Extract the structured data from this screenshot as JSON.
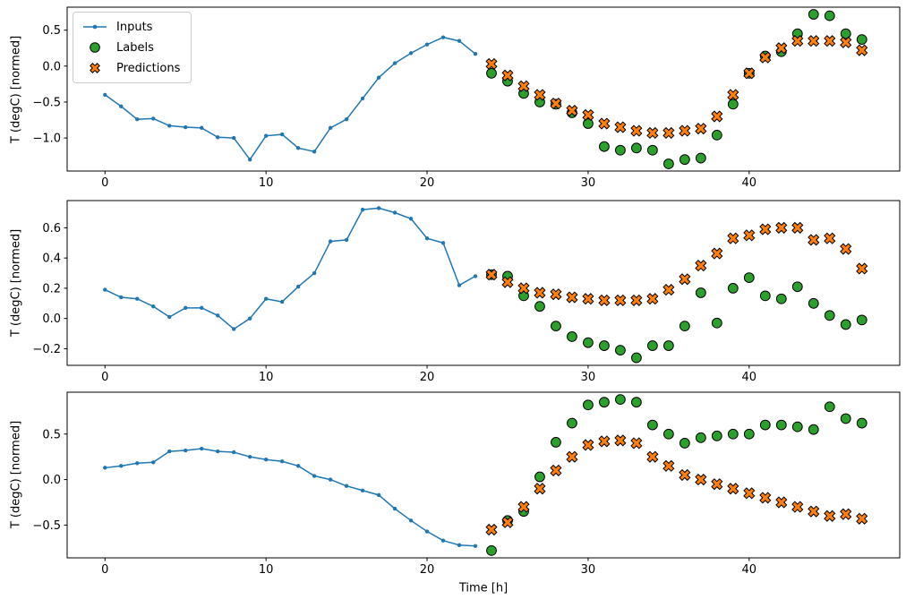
{
  "figure": {
    "xlabel": "Time [h]",
    "legend": {
      "items": [
        {
          "label": "Inputs",
          "marker": "line-dot",
          "color": "#1f77b4"
        },
        {
          "label": "Labels",
          "marker": "circle",
          "color": "#2ca02c"
        },
        {
          "label": "Predictions",
          "marker": "X",
          "color": "#ff7f0e"
        }
      ]
    },
    "colors": {
      "inputs": "#1f77b4",
      "labels": "#2ca02c",
      "predictions": "#ff7f0e",
      "marker_edge": "#000000",
      "spine": "#000000"
    }
  },
  "chart_data": [
    {
      "type": "line+scatter",
      "ylabel": "T (degC) [normed]",
      "xlim": [
        -2.35,
        49.35
      ],
      "ylim": [
        -1.46,
        0.82
      ],
      "xticks": [
        0,
        10,
        20,
        30,
        40
      ],
      "yticks": [
        0.5,
        0.0,
        -0.5,
        -1.0
      ],
      "grid": false,
      "series": [
        {
          "name": "Inputs",
          "type": "line",
          "marker": "dot",
          "color": "#1f77b4",
          "x": [
            0,
            1,
            2,
            3,
            4,
            5,
            6,
            7,
            8,
            9,
            10,
            11,
            12,
            13,
            14,
            15,
            16,
            17,
            18,
            19,
            20,
            21,
            22,
            23
          ],
          "y": [
            -0.4,
            -0.56,
            -0.74,
            -0.73,
            -0.83,
            -0.85,
            -0.86,
            -0.99,
            -1.0,
            -1.3,
            -0.97,
            -0.95,
            -1.14,
            -1.19,
            -0.86,
            -0.74,
            -0.45,
            -0.16,
            0.04,
            0.18,
            0.3,
            0.4,
            0.35,
            0.17
          ]
        },
        {
          "name": "Labels",
          "type": "scatter",
          "marker": "circle",
          "color": "#2ca02c",
          "edge": "#000000",
          "x": [
            24,
            25,
            26,
            27,
            28,
            29,
            30,
            31,
            32,
            33,
            34,
            35,
            36,
            37,
            38,
            39,
            40,
            41,
            42,
            43,
            44,
            45,
            46,
            47
          ],
          "y": [
            -0.1,
            -0.21,
            -0.38,
            -0.5,
            -0.53,
            -0.65,
            -0.8,
            -1.12,
            -1.17,
            -1.14,
            -1.17,
            -1.36,
            -1.3,
            -1.28,
            -0.96,
            -0.53,
            -0.1,
            0.14,
            0.2,
            0.45,
            0.72,
            0.7,
            0.45,
            0.37
          ]
        },
        {
          "name": "Predictions",
          "type": "scatter",
          "marker": "X",
          "color": "#ff7f0e",
          "edge": "#000000",
          "x": [
            24,
            25,
            26,
            27,
            28,
            29,
            30,
            31,
            32,
            33,
            34,
            35,
            36,
            37,
            38,
            39,
            40,
            41,
            42,
            43,
            44,
            45,
            46,
            47
          ],
          "y": [
            0.03,
            -0.13,
            -0.28,
            -0.4,
            -0.52,
            -0.62,
            -0.68,
            -0.8,
            -0.85,
            -0.9,
            -0.93,
            -0.93,
            -0.9,
            -0.87,
            -0.7,
            -0.4,
            -0.1,
            0.12,
            0.25,
            0.35,
            0.35,
            0.35,
            0.33,
            0.22
          ]
        }
      ]
    },
    {
      "type": "line+scatter",
      "ylabel": "T (degC) [normed]",
      "xlim": [
        -2.35,
        49.35
      ],
      "ylim": [
        -0.31,
        0.78
      ],
      "xticks": [
        0,
        10,
        20,
        30,
        40
      ],
      "yticks": [
        0.6,
        0.4,
        0.2,
        0.0,
        -0.2
      ],
      "grid": false,
      "series": [
        {
          "name": "Inputs",
          "type": "line",
          "marker": "dot",
          "color": "#1f77b4",
          "x": [
            0,
            1,
            2,
            3,
            4,
            5,
            6,
            7,
            8,
            9,
            10,
            11,
            12,
            13,
            14,
            15,
            16,
            17,
            18,
            19,
            20,
            21,
            22,
            23
          ],
          "y": [
            0.19,
            0.14,
            0.13,
            0.08,
            0.01,
            0.07,
            0.07,
            0.02,
            -0.07,
            0.0,
            0.13,
            0.11,
            0.21,
            0.3,
            0.51,
            0.52,
            0.72,
            0.73,
            0.7,
            0.66,
            0.53,
            0.5,
            0.22,
            0.28
          ]
        },
        {
          "name": "Labels",
          "type": "scatter",
          "marker": "circle",
          "color": "#2ca02c",
          "edge": "#000000",
          "x": [
            24,
            25,
            26,
            27,
            28,
            29,
            30,
            31,
            32,
            33,
            34,
            35,
            36,
            37,
            38,
            39,
            40,
            41,
            42,
            43,
            44,
            45,
            46,
            47
          ],
          "y": [
            0.29,
            0.28,
            0.15,
            0.08,
            -0.05,
            -0.12,
            -0.16,
            -0.18,
            -0.21,
            -0.26,
            -0.18,
            -0.18,
            -0.05,
            0.17,
            -0.03,
            0.2,
            0.27,
            0.15,
            0.13,
            0.21,
            0.1,
            0.02,
            -0.04,
            -0.01
          ]
        },
        {
          "name": "Predictions",
          "type": "scatter",
          "marker": "X",
          "color": "#ff7f0e",
          "edge": "#000000",
          "x": [
            24,
            25,
            26,
            27,
            28,
            29,
            30,
            31,
            32,
            33,
            34,
            35,
            36,
            37,
            38,
            39,
            40,
            41,
            42,
            43,
            44,
            45,
            46,
            47
          ],
          "y": [
            0.29,
            0.24,
            0.2,
            0.17,
            0.16,
            0.14,
            0.13,
            0.12,
            0.12,
            0.12,
            0.13,
            0.19,
            0.26,
            0.35,
            0.43,
            0.53,
            0.55,
            0.59,
            0.6,
            0.6,
            0.52,
            0.53,
            0.46,
            0.33
          ]
        }
      ]
    },
    {
      "type": "line+scatter",
      "ylabel": "T (degC) [normed]",
      "xlim": [
        -2.35,
        49.35
      ],
      "ylim": [
        -0.86,
        0.96
      ],
      "xticks": [
        0,
        10,
        20,
        30,
        40
      ],
      "yticks": [
        0.5,
        0.0,
        -0.5
      ],
      "grid": false,
      "series": [
        {
          "name": "Inputs",
          "type": "line",
          "marker": "dot",
          "color": "#1f77b4",
          "x": [
            0,
            1,
            2,
            3,
            4,
            5,
            6,
            7,
            8,
            9,
            10,
            11,
            12,
            13,
            14,
            15,
            16,
            17,
            18,
            19,
            20,
            21,
            22,
            23
          ],
          "y": [
            0.13,
            0.15,
            0.18,
            0.19,
            0.31,
            0.32,
            0.34,
            0.31,
            0.3,
            0.25,
            0.22,
            0.2,
            0.15,
            0.04,
            0.0,
            -0.07,
            -0.12,
            -0.17,
            -0.32,
            -0.45,
            -0.57,
            -0.67,
            -0.72,
            -0.73
          ]
        },
        {
          "name": "Labels",
          "type": "scatter",
          "marker": "circle",
          "color": "#2ca02c",
          "edge": "#000000",
          "x": [
            24,
            25,
            26,
            27,
            28,
            29,
            30,
            31,
            32,
            33,
            34,
            35,
            36,
            37,
            38,
            39,
            40,
            41,
            42,
            43,
            44,
            45,
            46,
            47
          ],
          "y": [
            -0.78,
            -0.45,
            -0.35,
            0.03,
            0.41,
            0.62,
            0.82,
            0.85,
            0.88,
            0.85,
            0.6,
            0.5,
            0.4,
            0.46,
            0.48,
            0.5,
            0.5,
            0.6,
            0.6,
            0.58,
            0.55,
            0.8,
            0.67,
            0.62
          ]
        },
        {
          "name": "Predictions",
          "type": "scatter",
          "marker": "X",
          "color": "#ff7f0e",
          "edge": "#000000",
          "x": [
            24,
            25,
            26,
            27,
            28,
            29,
            30,
            31,
            32,
            33,
            34,
            35,
            36,
            37,
            38,
            39,
            40,
            41,
            42,
            43,
            44,
            45,
            46,
            47
          ],
          "y": [
            -0.55,
            -0.47,
            -0.3,
            -0.1,
            0.1,
            0.25,
            0.38,
            0.42,
            0.43,
            0.4,
            0.25,
            0.15,
            0.05,
            0.0,
            -0.05,
            -0.1,
            -0.15,
            -0.2,
            -0.25,
            -0.3,
            -0.35,
            -0.4,
            -0.38,
            -0.43
          ]
        }
      ]
    }
  ]
}
